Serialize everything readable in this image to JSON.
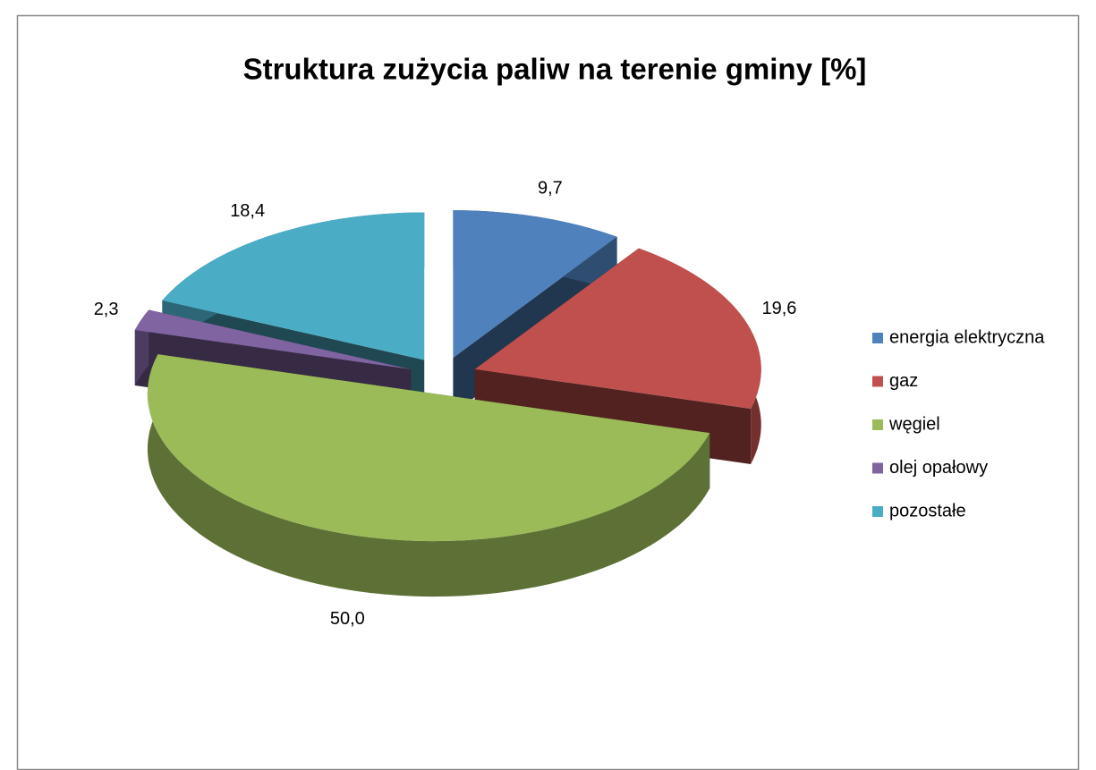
{
  "chart_data": {
    "type": "pie",
    "title": "Struktura zużycia paliw na terenie gminy [%]",
    "categories": [
      "energia elektryczna",
      "gaz",
      "węgiel",
      "olej opałowy",
      "pozostałe"
    ],
    "values": [
      9.7,
      19.6,
      50.0,
      2.3,
      18.4
    ],
    "value_labels": [
      "9,7",
      "19,6",
      "50,0",
      "2,3",
      "18,4"
    ],
    "colors": [
      "#4f81bd",
      "#c0504d",
      "#9bbb59",
      "#8064a2",
      "#4bacc6"
    ],
    "legend": "right"
  }
}
